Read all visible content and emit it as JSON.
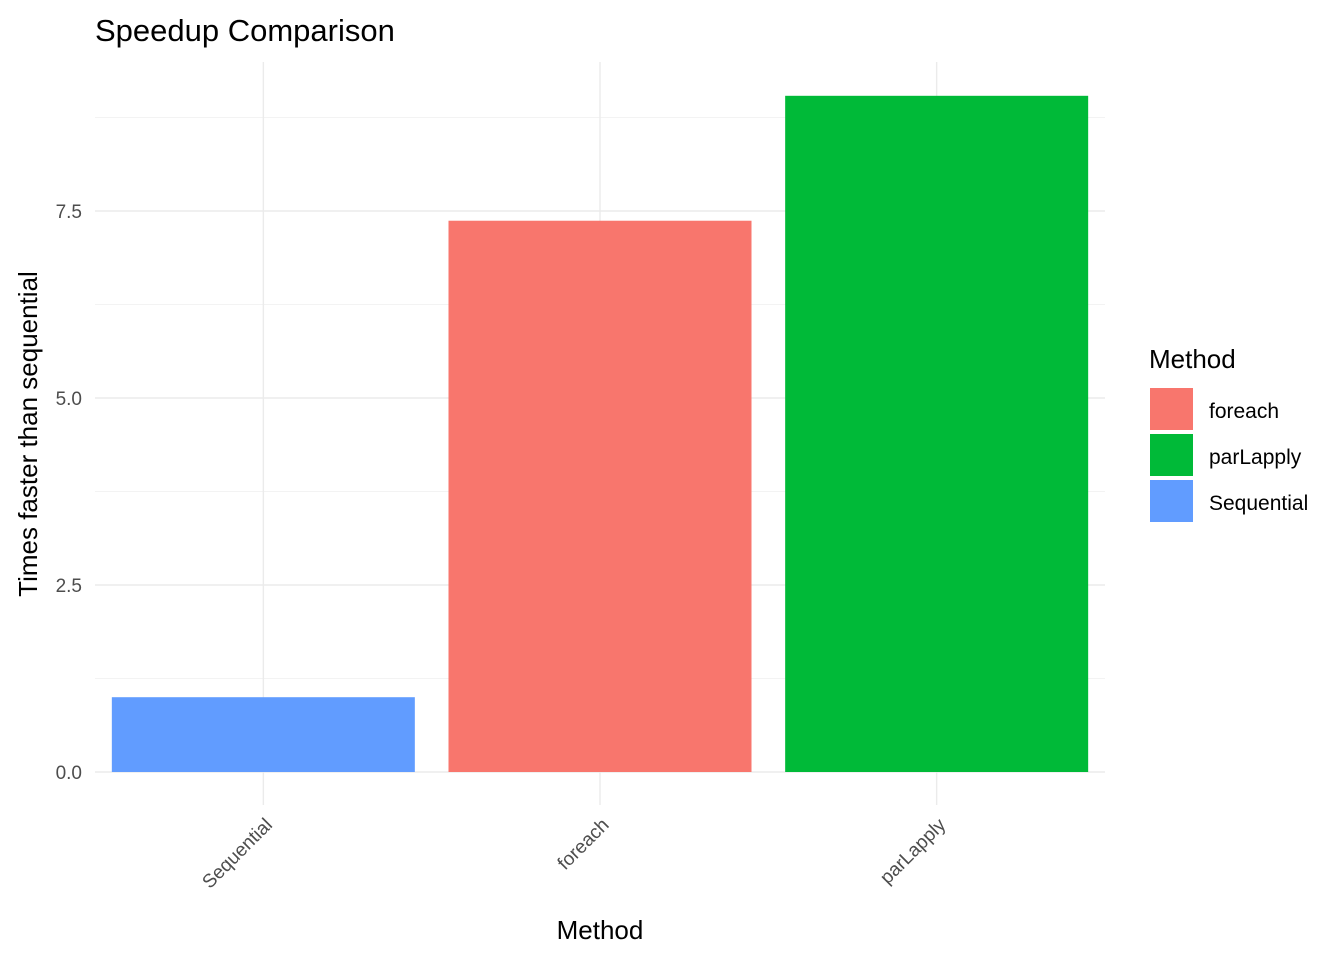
{
  "chart_data": {
    "type": "bar",
    "title": "Speedup Comparison",
    "xlabel": "Method",
    "ylabel": "Times faster than sequential",
    "categories": [
      "Sequential",
      "foreach",
      "parLapply"
    ],
    "values": [
      1.0,
      7.37,
      9.04
    ],
    "bar_colors": [
      "#619CFF",
      "#F8766D",
      "#00BA38"
    ],
    "ylim": [
      0,
      9.5
    ],
    "yticks": [
      0.0,
      2.5,
      5.0,
      7.5
    ],
    "ytick_labels": [
      "0.0",
      "2.5",
      "5.0",
      "7.5"
    ],
    "grid": true,
    "legend": {
      "title": "Method",
      "placement": "right",
      "items": [
        {
          "label": "foreach",
          "color": "#F8766D"
        },
        {
          "label": "parLapply",
          "color": "#00BA38"
        },
        {
          "label": "Sequential",
          "color": "#619CFF"
        }
      ]
    }
  }
}
